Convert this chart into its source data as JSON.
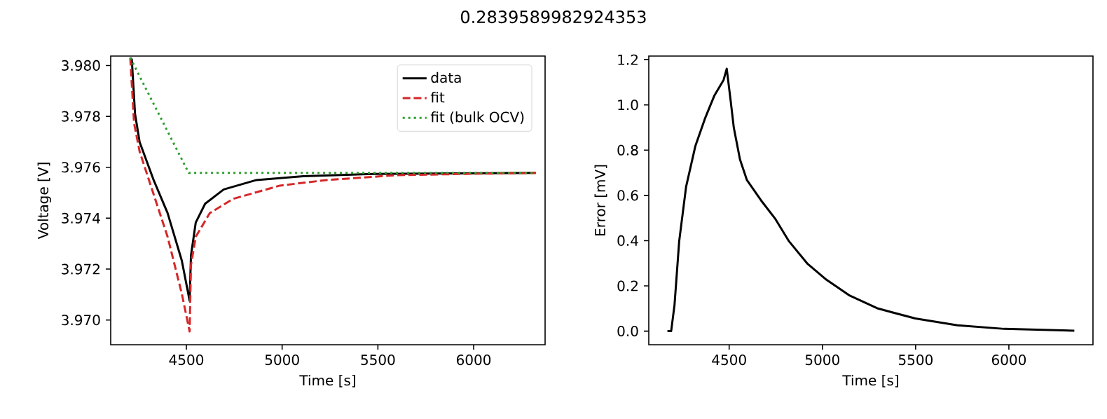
{
  "chart_data": [
    {
      "type": "line",
      "title": "0.2839589982924353",
      "xlabel": "Time [s]",
      "ylabel": "Voltage [V]",
      "legend": "top right",
      "xlim": [
        4105,
        6373
      ],
      "ylim": [
        3.96903,
        3.98037
      ],
      "xticks": [
        4500,
        5000,
        5500,
        6000
      ],
      "yticks": [
        {
          "value": 3.97,
          "label": "3.970"
        },
        {
          "value": 3.972,
          "label": "3.972"
        },
        {
          "value": 3.974,
          "label": "3.974"
        },
        {
          "value": 3.976,
          "label": "3.976"
        },
        {
          "value": 3.978,
          "label": "3.978"
        },
        {
          "value": 3.98,
          "label": "3.980"
        }
      ],
      "series": [
        {
          "name": "data",
          "color": "#000000",
          "line_style": "solid",
          "x": [
            4207,
            4215,
            4232,
            4256,
            4329,
            4402,
            4476,
            4517,
            4524,
            4549,
            4598,
            4695,
            4866,
            5110,
            5476,
            6324
          ],
          "values": [
            3.9803,
            3.98024,
            3.9781,
            3.97699,
            3.9755,
            3.9742,
            3.97234,
            3.97076,
            3.97253,
            3.97383,
            3.97457,
            3.97513,
            3.9755,
            3.97565,
            3.97574,
            3.97578
          ]
        },
        {
          "name": "fit",
          "color": "#d62728",
          "line_style": "dashed",
          "x": [
            4207,
            4227,
            4256,
            4329,
            4402,
            4476,
            4517,
            4524,
            4549,
            4622,
            4744,
            4988,
            5232,
            5598,
            5963,
            6324
          ],
          "values": [
            3.9803,
            3.97773,
            3.97662,
            3.97494,
            3.97327,
            3.97104,
            3.96955,
            3.97216,
            3.97327,
            3.9742,
            3.97476,
            3.97528,
            3.9755,
            3.97569,
            3.97574,
            3.97578
          ]
        },
        {
          "name": "fit (bulk OCV)",
          "color": "#2ca02c",
          "line_style": "dotted",
          "x": [
            4207,
            4512,
            6324
          ],
          "values": [
            3.9803,
            3.97578,
            3.97578
          ]
        }
      ]
    },
    {
      "type": "line",
      "xlabel": "Time [s]",
      "ylabel": "Error [mV]",
      "xlim": [
        4069,
        6451
      ],
      "ylim": [
        -0.06,
        1.216
      ],
      "xticks": [
        4500,
        5000,
        5500,
        6000
      ],
      "yticks": [
        {
          "value": 0.0,
          "label": "0.0"
        },
        {
          "value": 0.2,
          "label": "0.2"
        },
        {
          "value": 0.4,
          "label": "0.4"
        },
        {
          "value": 0.6,
          "label": "0.6"
        },
        {
          "value": 0.8,
          "label": "0.8"
        },
        {
          "value": 1.0,
          "label": "1.0"
        },
        {
          "value": 1.2,
          "label": "1.2"
        }
      ],
      "series": [
        {
          "color": "#000000",
          "line_style": "solid",
          "x": [
            4169,
            4189,
            4207,
            4232,
            4269,
            4319,
            4370,
            4420,
            4470,
            4487,
            4508,
            4525,
            4558,
            4595,
            4671,
            4746,
            4821,
            4921,
            5022,
            5147,
            5298,
            5498,
            5724,
            5975,
            6351
          ],
          "values": [
            0,
            0,
            0.116,
            0.397,
            0.638,
            0.819,
            0.939,
            1.04,
            1.11,
            1.16,
            1.019,
            0.899,
            0.759,
            0.668,
            0.578,
            0.498,
            0.397,
            0.297,
            0.227,
            0.157,
            0.1,
            0.056,
            0.026,
            0.01,
            0.002
          ]
        }
      ]
    }
  ]
}
